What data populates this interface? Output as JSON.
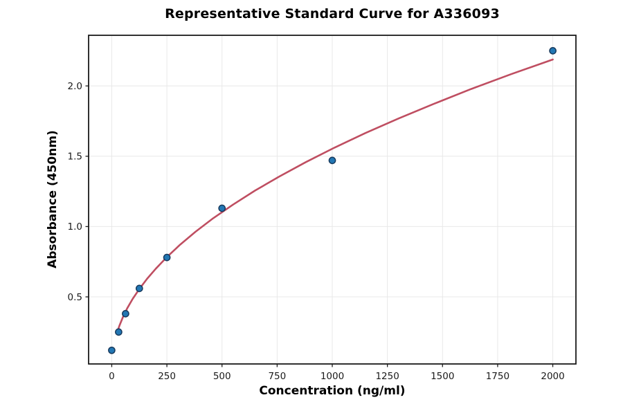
{
  "chart_data": {
    "type": "scatter",
    "title": "Representative Standard Curve for A336093",
    "xlabel": "Concentration (ng/ml)",
    "ylabel": "Absorbance (450nm)",
    "xlim": [
      -105,
      2105
    ],
    "ylim": [
      0.023,
      2.36
    ],
    "grid": true,
    "legend": "none",
    "x_ticks": [
      0,
      250,
      500,
      750,
      1000,
      1250,
      1500,
      1750,
      2000
    ],
    "x_tick_labels": [
      "0",
      "250",
      "500",
      "750",
      "1000",
      "1250",
      "1500",
      "1750",
      "2000"
    ],
    "y_ticks": [
      0.5,
      1.0,
      1.5,
      2.0
    ],
    "y_tick_labels": [
      "0.5",
      "1.0",
      "1.5",
      "2.0"
    ],
    "series": [
      {
        "name": "standard-points",
        "type": "scatter",
        "x": [
          0,
          31.25,
          62.5,
          125,
          250,
          500,
          1000,
          2000
        ],
        "y": [
          0.12,
          0.25,
          0.38,
          0.56,
          0.78,
          1.13,
          1.47,
          2.25
        ]
      },
      {
        "name": "fitted-curve",
        "type": "line",
        "x": [
          25,
          35,
          50,
          70,
          95,
          125,
          160,
          200,
          250,
          310,
          380,
          460,
          550,
          650,
          760,
          880,
          1010,
          1150,
          1300,
          1460,
          1630,
          1810,
          2000
        ],
        "y": [
          0.251,
          0.296,
          0.354,
          0.418,
          0.486,
          0.556,
          0.628,
          0.701,
          0.783,
          0.871,
          0.963,
          1.059,
          1.156,
          1.256,
          1.356,
          1.458,
          1.561,
          1.665,
          1.768,
          1.872,
          1.978,
          2.083,
          2.188
        ]
      }
    ],
    "colors": {
      "marker_fill": "#2277b4",
      "marker_edge": "#17395c",
      "curve": "#bf4e61",
      "grid": "#e8e8e8",
      "frame": "#1a1a1a",
      "tick": "#1a1a1a",
      "background": "#ffffff"
    }
  }
}
